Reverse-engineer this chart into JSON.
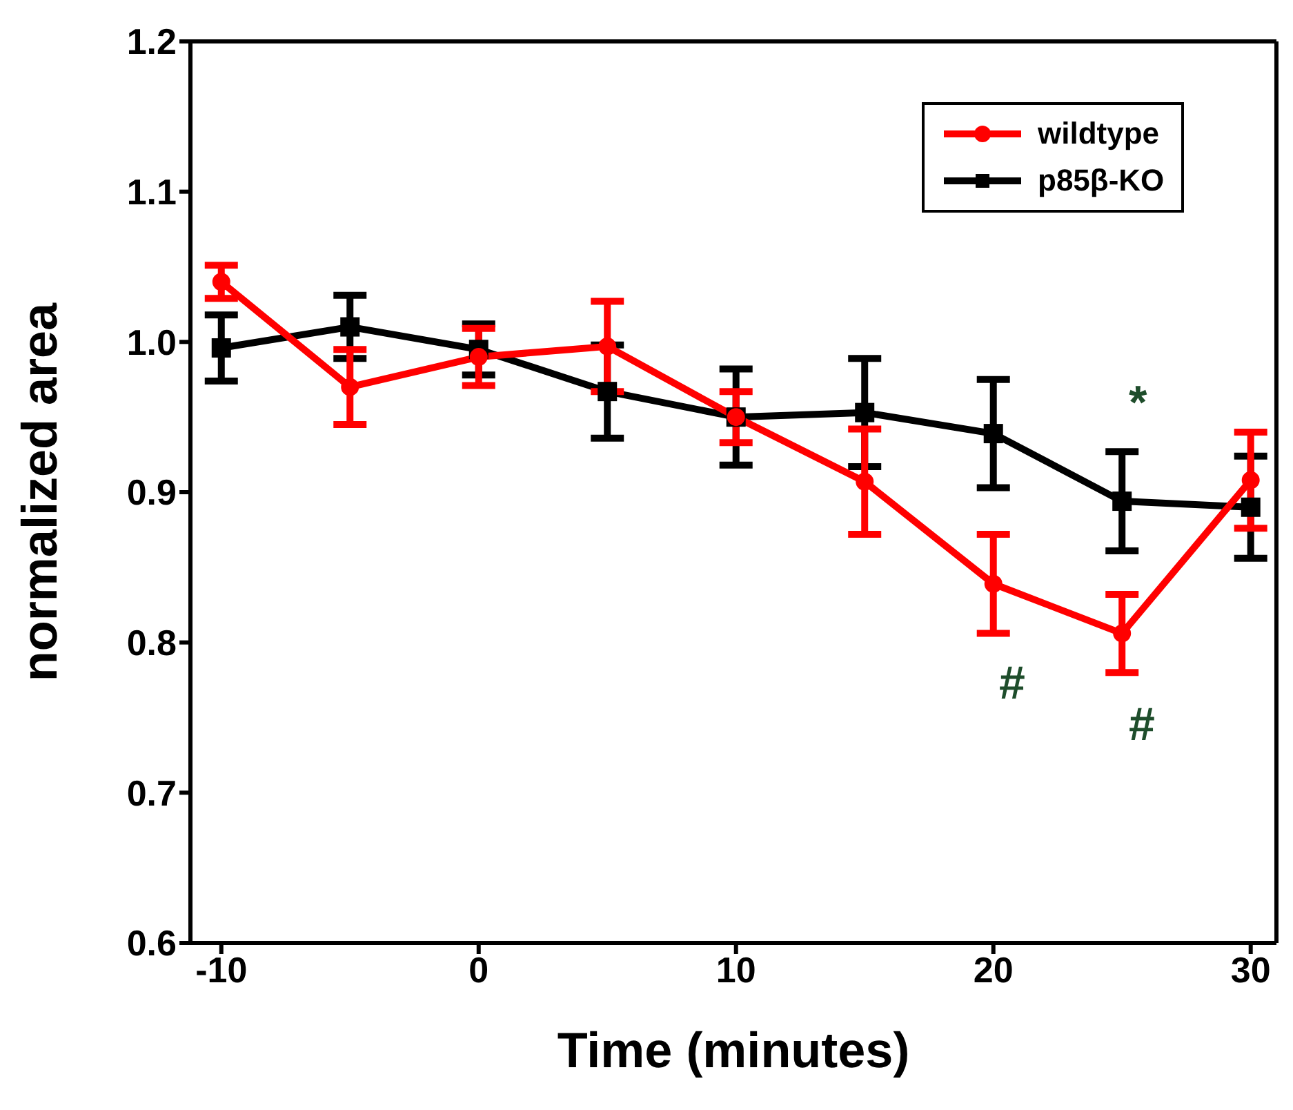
{
  "chart_data": {
    "type": "line",
    "xlabel": "Time (minutes)",
    "ylabel": "normalized area",
    "x": [
      -10,
      -5,
      0,
      5,
      10,
      15,
      20,
      25,
      30
    ],
    "series": [
      {
        "name": "wildtype",
        "color": "#ff0000",
        "marker": "circle",
        "values": [
          1.04,
          0.97,
          0.99,
          0.997,
          0.95,
          0.907,
          0.839,
          0.806,
          0.908
        ],
        "errors": [
          0.011,
          0.025,
          0.019,
          0.03,
          0.017,
          0.035,
          0.033,
          0.026,
          0.032
        ]
      },
      {
        "name": "p85β-KO",
        "color": "#000000",
        "marker": "square",
        "values": [
          0.996,
          1.01,
          0.995,
          0.967,
          0.95,
          0.953,
          0.939,
          0.894,
          0.89
        ],
        "errors": [
          0.022,
          0.021,
          0.017,
          0.031,
          0.032,
          0.036,
          0.036,
          0.033,
          0.034
        ]
      }
    ],
    "xlim": [
      -11.2,
      31
    ],
    "xticks": [
      -10,
      0,
      10,
      20,
      30
    ],
    "ylim": [
      0.6,
      1.2
    ],
    "yticks": [
      0.6,
      0.7,
      0.8,
      0.9,
      {
        "value": 1,
        "label": "1.0"
      },
      1.1,
      1.2
    ],
    "grid": false,
    "legend": "top right",
    "line_style": "solid",
    "annotations": [
      "#",
      "#",
      "*"
    ]
  }
}
